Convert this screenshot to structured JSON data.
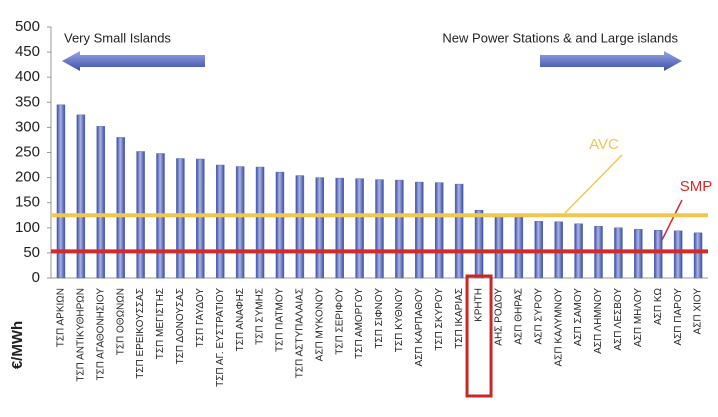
{
  "chart_data": {
    "type": "bar",
    "categories": [
      "ΤΣΠ ΑΡΚΙΩΝ",
      "ΤΣΠ ΑΝΤΙΚΥΘΗΡΩΝ",
      "ΤΣΠ ΑΓΑΘΟΝΗΣΙΟΥ",
      "ΤΣΠ ΟΘΩΝΩΝ",
      "ΤΣΠ ΕΡΕΙΚΟΥΣΣΑΣ",
      "ΤΣΠ ΜΕΓΙΣΤΗΣ",
      "ΤΣΠ ΔΟΝΟΥΣΑΣ",
      "ΤΣΠ ΓΑΥΔΟΥ",
      "ΤΣΠ ΑΓ. ΕΥΣΤΡΑΤΙΟΥ",
      "ΤΣΠ ΑΝΑΦΗΣ",
      "ΤΣΠ ΣΥΜΗΣ",
      "ΤΣΠ ΠΑΤΜΟΥ",
      "ΤΣΠ ΑΣΤΥΠΑΛΑΙΑΣ",
      "ΑΣΠ ΜΥΚΟΝΟΥ",
      "ΤΣΠ ΣΕΡΙΦΟΥ",
      "ΤΣΠ ΑΜΟΡΓΟΥ",
      "ΤΣΠ ΣΙΦΝΟΥ",
      "ΤΣΠ ΚΥΘΝΟΥ",
      "ΑΣΠ ΚΑΡΠΑΘΟΥ",
      "ΤΣΠ ΣΚΥΡΟΥ",
      "ΤΣΠ ΙΚΑΡΙΑΣ",
      "ΚΡΗΤΗ",
      "ΑΗΣ ΡΟΔΟΥ",
      "ΑΣΠ ΘΗΡΑΣ",
      "ΑΣΠ ΣΥΡΟΥ",
      "ΑΣΠ ΚΑΛΥΜΝΟΥ",
      "ΑΣΠ ΣΑΜΟΥ",
      "ΑΣΠ ΛΗΜΝΟΥ",
      "ΑΣΠ ΛΕΣΒΟΥ",
      "ΑΣΠ ΜΗΛΟΥ",
      "ΑΣΠ ΚΩ",
      "ΑΣΠ ΠΑΡΟΥ",
      "ΑΣΠ ΧΙΟΥ"
    ],
    "values": [
      345,
      325,
      302,
      280,
      252,
      248,
      238,
      237,
      225,
      222,
      221,
      211,
      204,
      200,
      199,
      198,
      196,
      195,
      191,
      190,
      187,
      135,
      122,
      121,
      113,
      112,
      108,
      103,
      100,
      97,
      95,
      94,
      90
    ],
    "color": "#5a6bb8",
    "highlight": 21,
    "ylabel": "€/MWh",
    "ylim": [
      0,
      500
    ],
    "yticks": [
      0,
      50,
      100,
      150,
      200,
      250,
      300,
      350,
      400,
      450,
      500
    ],
    "reference_lines": [
      {
        "label": "AVC",
        "value": 125,
        "color": "#f0c850"
      },
      {
        "label": "SMP",
        "value": 53,
        "color": "#d42a2a"
      }
    ],
    "annotations": [
      "Very Small Islands",
      "New Power Stations & and Large islands"
    ]
  }
}
